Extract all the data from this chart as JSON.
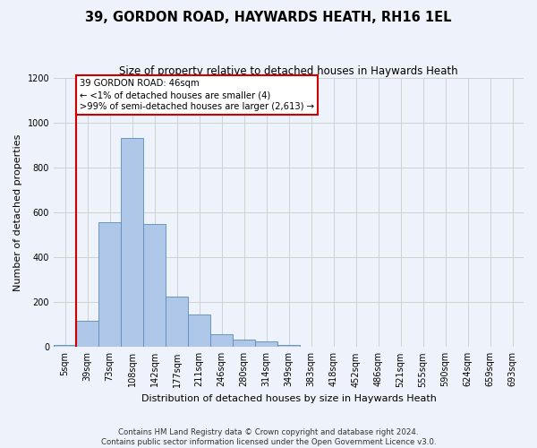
{
  "title": "39, GORDON ROAD, HAYWARDS HEATH, RH16 1EL",
  "subtitle": "Size of property relative to detached houses in Haywards Heath",
  "xlabel": "Distribution of detached houses by size in Haywards Heath",
  "ylabel": "Number of detached properties",
  "footer_line1": "Contains HM Land Registry data © Crown copyright and database right 2024.",
  "footer_line2": "Contains public sector information licensed under the Open Government Licence v3.0.",
  "bin_labels": [
    "5sqm",
    "39sqm",
    "73sqm",
    "108sqm",
    "142sqm",
    "177sqm",
    "211sqm",
    "246sqm",
    "280sqm",
    "314sqm",
    "349sqm",
    "383sqm",
    "418sqm",
    "452sqm",
    "486sqm",
    "521sqm",
    "555sqm",
    "590sqm",
    "624sqm",
    "659sqm",
    "693sqm"
  ],
  "bar_values": [
    8,
    115,
    555,
    930,
    550,
    225,
    145,
    58,
    33,
    25,
    10,
    0,
    0,
    0,
    0,
    0,
    0,
    0,
    0,
    0,
    0
  ],
  "bar_color": "#aec6e8",
  "bar_edge_color": "#5b8db8",
  "vline_bin_index": 1,
  "annotation_text": "39 GORDON ROAD: 46sqm\n← <1% of detached houses are smaller (4)\n>99% of semi-detached houses are larger (2,613) →",
  "annotation_box_color": "#ffffff",
  "annotation_box_edge_color": "#cc0000",
  "vline_color": "#cc0000",
  "ylim": [
    0,
    1200
  ],
  "yticks": [
    0,
    200,
    400,
    600,
    800,
    1000,
    1200
  ],
  "grid_color": "#d0d0d0",
  "bg_color": "#eef2fa"
}
